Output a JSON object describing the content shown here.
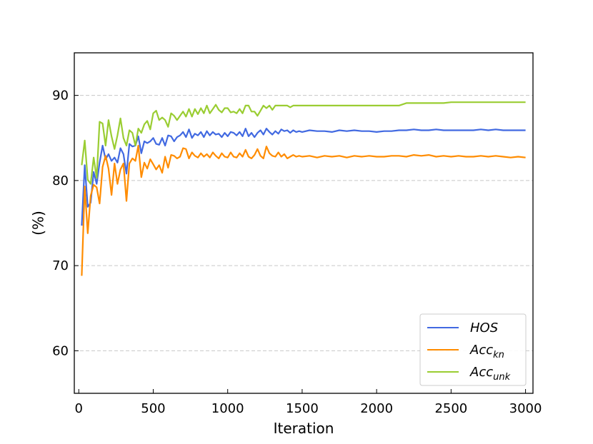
{
  "chart_data": {
    "type": "line",
    "xlabel": "Iteration",
    "ylabel": "(%)",
    "xlim": [
      -30,
      3050
    ],
    "ylim": [
      55,
      95
    ],
    "xticks": [
      0,
      500,
      1000,
      1500,
      2000,
      2500,
      3000
    ],
    "yticks": [
      60,
      70,
      80,
      90
    ],
    "grid": "horizontal dashed",
    "legend_position": "lower-right",
    "legend": [
      {
        "base": "HOS",
        "sub": ""
      },
      {
        "base": "Acc",
        "sub": "kn"
      },
      {
        "base": "Acc",
        "sub": "unk"
      }
    ],
    "series": [
      {
        "name": "HOS",
        "color": "#4169e1",
        "x": [
          20,
          40,
          60,
          80,
          100,
          120,
          140,
          160,
          180,
          200,
          220,
          240,
          260,
          280,
          300,
          320,
          340,
          360,
          380,
          400,
          420,
          440,
          460,
          480,
          500,
          520,
          540,
          560,
          580,
          600,
          620,
          640,
          660,
          680,
          700,
          720,
          740,
          760,
          780,
          800,
          820,
          840,
          860,
          880,
          900,
          920,
          940,
          960,
          980,
          1000,
          1020,
          1040,
          1060,
          1080,
          1100,
          1120,
          1140,
          1160,
          1180,
          1200,
          1220,
          1240,
          1260,
          1280,
          1300,
          1320,
          1340,
          1360,
          1380,
          1400,
          1420,
          1440,
          1460,
          1480,
          1500,
          1550,
          1600,
          1650,
          1700,
          1750,
          1800,
          1850,
          1900,
          1950,
          2000,
          2050,
          2100,
          2150,
          2200,
          2250,
          2300,
          2350,
          2400,
          2450,
          2500,
          2550,
          2600,
          2650,
          2700,
          2750,
          2800,
          2850,
          2900,
          2950,
          3000
        ],
        "values": [
          74.7,
          81.8,
          76.9,
          77.4,
          81.0,
          79.6,
          82.1,
          84.1,
          82.5,
          83.1,
          82.3,
          82.7,
          82.1,
          83.8,
          83.1,
          80.8,
          84.3,
          84.0,
          84.1,
          85.2,
          83.2,
          84.6,
          84.4,
          84.6,
          85.0,
          84.3,
          84.2,
          85.0,
          84.1,
          85.3,
          85.2,
          84.6,
          85.1,
          85.3,
          85.7,
          85.1,
          86.0,
          85.0,
          85.5,
          85.3,
          85.7,
          85.1,
          85.8,
          85.3,
          85.7,
          85.4,
          85.5,
          85.1,
          85.6,
          85.2,
          85.7,
          85.6,
          85.3,
          85.7,
          85.2,
          86.1,
          85.2,
          85.6,
          85.1,
          85.6,
          85.9,
          85.4,
          86.1,
          85.7,
          85.4,
          85.8,
          85.5,
          86.0,
          85.8,
          85.9,
          85.6,
          85.9,
          85.7,
          85.8,
          85.7,
          85.9,
          85.8,
          85.8,
          85.7,
          85.9,
          85.8,
          85.9,
          85.8,
          85.8,
          85.7,
          85.8,
          85.8,
          85.9,
          85.9,
          86.0,
          85.9,
          85.9,
          86.0,
          85.9,
          85.9,
          85.9,
          85.9,
          85.9,
          86.0,
          85.9,
          86.0,
          85.9,
          85.9,
          85.9,
          85.9
        ]
      },
      {
        "name": "Acc_kn",
        "color": "#ff8c00",
        "x": [
          20,
          40,
          60,
          80,
          100,
          120,
          140,
          160,
          180,
          200,
          220,
          240,
          260,
          280,
          300,
          320,
          340,
          360,
          380,
          400,
          420,
          440,
          460,
          480,
          500,
          520,
          540,
          560,
          580,
          600,
          620,
          640,
          660,
          680,
          700,
          720,
          740,
          760,
          780,
          800,
          820,
          840,
          860,
          880,
          900,
          920,
          940,
          960,
          980,
          1000,
          1020,
          1040,
          1060,
          1080,
          1100,
          1120,
          1140,
          1160,
          1180,
          1200,
          1220,
          1240,
          1260,
          1280,
          1300,
          1320,
          1340,
          1360,
          1380,
          1400,
          1420,
          1440,
          1460,
          1480,
          1500,
          1550,
          1600,
          1650,
          1700,
          1750,
          1800,
          1850,
          1900,
          1950,
          2000,
          2050,
          2100,
          2150,
          2200,
          2250,
          2300,
          2350,
          2400,
          2450,
          2500,
          2550,
          2600,
          2650,
          2700,
          2750,
          2800,
          2850,
          2900,
          2950,
          3000
        ],
        "values": [
          68.8,
          79.3,
          73.8,
          78.2,
          79.5,
          79.2,
          77.3,
          81.6,
          82.9,
          81.4,
          78.3,
          82.0,
          79.6,
          81.3,
          82.0,
          77.6,
          82.0,
          82.6,
          82.3,
          84.1,
          80.4,
          82.1,
          81.4,
          82.5,
          81.9,
          81.3,
          81.8,
          80.9,
          82.8,
          81.5,
          83.0,
          82.9,
          82.6,
          82.8,
          83.8,
          83.7,
          82.6,
          83.3,
          82.9,
          82.7,
          83.2,
          82.8,
          83.1,
          82.7,
          83.3,
          82.9,
          82.6,
          83.2,
          82.8,
          82.7,
          83.3,
          82.8,
          82.7,
          83.2,
          82.8,
          83.6,
          82.8,
          82.6,
          83.0,
          83.7,
          82.9,
          82.6,
          84.0,
          83.2,
          82.9,
          82.8,
          83.3,
          82.8,
          83.1,
          82.6,
          82.8,
          83.0,
          82.8,
          82.9,
          82.8,
          82.9,
          82.7,
          82.9,
          82.8,
          82.9,
          82.7,
          82.9,
          82.8,
          82.9,
          82.8,
          82.8,
          82.9,
          82.9,
          82.8,
          83.0,
          82.9,
          83.0,
          82.8,
          82.9,
          82.8,
          82.9,
          82.8,
          82.8,
          82.9,
          82.8,
          82.9,
          82.8,
          82.7,
          82.8,
          82.7
        ]
      },
      {
        "name": "Acc_unk",
        "color": "#9acd32",
        "x": [
          20,
          40,
          60,
          80,
          100,
          120,
          140,
          160,
          180,
          200,
          220,
          240,
          260,
          280,
          300,
          320,
          340,
          360,
          380,
          400,
          420,
          440,
          460,
          480,
          500,
          520,
          540,
          560,
          580,
          600,
          620,
          640,
          660,
          680,
          700,
          720,
          740,
          760,
          780,
          800,
          820,
          840,
          860,
          880,
          900,
          920,
          940,
          960,
          980,
          1000,
          1020,
          1040,
          1060,
          1080,
          1100,
          1120,
          1140,
          1160,
          1180,
          1200,
          1220,
          1240,
          1260,
          1280,
          1300,
          1320,
          1340,
          1360,
          1380,
          1400,
          1420,
          1440,
          1460,
          1480,
          1500,
          1550,
          1600,
          1650,
          1700,
          1750,
          1800,
          1850,
          1900,
          1950,
          2000,
          2050,
          2100,
          2150,
          2200,
          2250,
          2300,
          2350,
          2400,
          2450,
          2500,
          2550,
          2600,
          2650,
          2700,
          2750,
          2800,
          2850,
          2900,
          2950,
          3000
        ],
        "values": [
          81.8,
          84.7,
          80.1,
          79.6,
          82.7,
          80.3,
          86.9,
          86.7,
          84.1,
          87.1,
          85.2,
          83.7,
          85.3,
          87.3,
          85.0,
          84.1,
          85.9,
          85.6,
          84.1,
          86.1,
          85.6,
          86.6,
          87.0,
          86.0,
          87.9,
          88.2,
          87.1,
          87.4,
          87.1,
          86.3,
          87.9,
          87.6,
          87.1,
          87.6,
          88.1,
          87.5,
          88.4,
          87.5,
          88.4,
          87.8,
          88.5,
          87.9,
          88.8,
          87.9,
          88.4,
          88.9,
          88.3,
          88.0,
          88.5,
          88.5,
          88.0,
          88.1,
          87.9,
          88.4,
          87.9,
          88.8,
          88.8,
          88.1,
          88.1,
          87.6,
          88.2,
          88.8,
          88.5,
          88.8,
          88.3,
          88.8,
          88.8,
          88.8,
          88.8,
          88.8,
          88.6,
          88.8,
          88.8,
          88.8,
          88.8,
          88.8,
          88.8,
          88.8,
          88.8,
          88.8,
          88.8,
          88.8,
          88.8,
          88.8,
          88.8,
          88.8,
          88.8,
          88.8,
          89.1,
          89.1,
          89.1,
          89.1,
          89.1,
          89.1,
          89.2,
          89.2,
          89.2,
          89.2,
          89.2,
          89.2,
          89.2,
          89.2,
          89.2,
          89.2,
          89.2
        ]
      }
    ]
  }
}
